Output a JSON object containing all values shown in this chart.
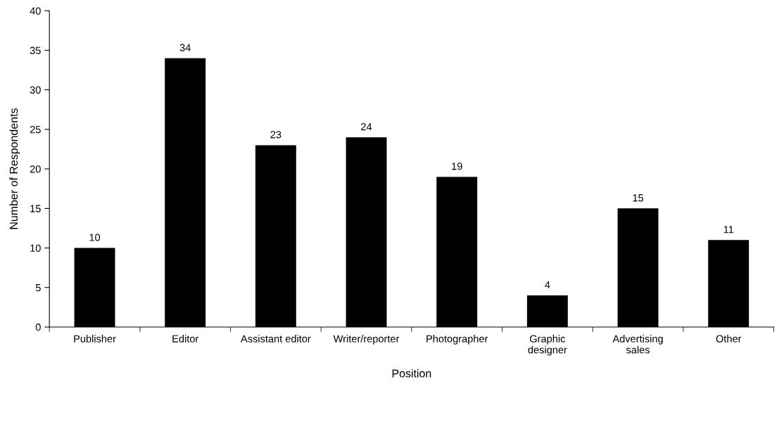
{
  "chart_data": {
    "type": "bar",
    "xlabel": "Position",
    "ylabel": "Number of Respondents",
    "categories": [
      "Publisher",
      "Editor",
      "Assistant editor",
      "Writer/reporter",
      "Photographer",
      "Graphic\ndesigner",
      "Advertising\nsales",
      "Other"
    ],
    "values": [
      10,
      34,
      23,
      24,
      19,
      4,
      15,
      11
    ],
    "color": "#000000",
    "ylim": [
      0,
      40
    ],
    "yticks": [
      0,
      5,
      10,
      15,
      20,
      25,
      30,
      35,
      40
    ],
    "grid": false,
    "data_labels": true
  }
}
